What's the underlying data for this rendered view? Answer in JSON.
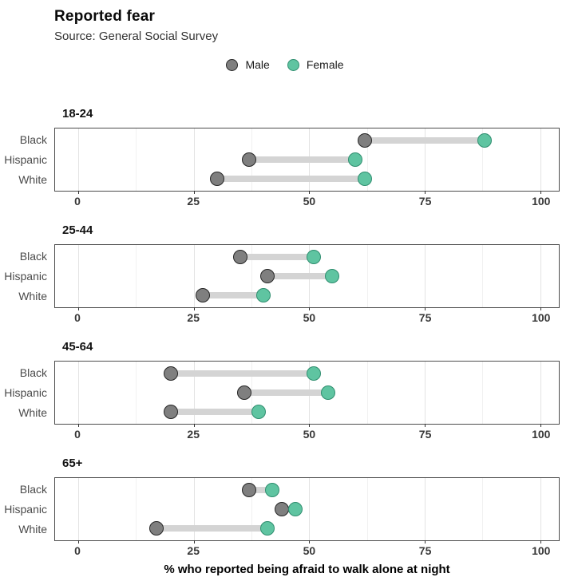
{
  "chart_data": {
    "type": "dumbbell",
    "title": "Reported fear",
    "subtitle": "Source: General Social Survey",
    "xlabel": "% who reported being afraid to walk alone at night",
    "x_axis": {
      "ticks": [
        0,
        25,
        50,
        75,
        100
      ],
      "minor_ticks": [
        12.5,
        37.5,
        62.5,
        87.5
      ],
      "range": [
        -5,
        104
      ]
    },
    "legend_position": "top-center",
    "grid": "vertical-only",
    "series": [
      {
        "name": "Male",
        "fill": "#7f7f7f",
        "stroke": "#262626"
      },
      {
        "name": "Female",
        "fill": "#5fc4a1",
        "stroke": "#2f8e6f"
      }
    ],
    "connector_color": "#d4d4d4",
    "categories": [
      "Black",
      "Hispanic",
      "White"
    ],
    "panels": [
      {
        "label": "18-24",
        "rows": [
          {
            "category": "Black",
            "male": 62,
            "female": 88
          },
          {
            "category": "Hispanic",
            "male": 37,
            "female": 60
          },
          {
            "category": "White",
            "male": 30,
            "female": 62
          }
        ]
      },
      {
        "label": "25-44",
        "rows": [
          {
            "category": "Black",
            "male": 35,
            "female": 51
          },
          {
            "category": "Hispanic",
            "male": 41,
            "female": 55
          },
          {
            "category": "White",
            "male": 27,
            "female": 40
          }
        ]
      },
      {
        "label": "45-64",
        "rows": [
          {
            "category": "Black",
            "male": 20,
            "female": 51
          },
          {
            "category": "Hispanic",
            "male": 36,
            "female": 54
          },
          {
            "category": "White",
            "male": 20,
            "female": 39
          }
        ]
      },
      {
        "label": "65+",
        "rows": [
          {
            "category": "Black",
            "male": 37,
            "female": 42
          },
          {
            "category": "Hispanic",
            "male": 44,
            "female": 47
          },
          {
            "category": "White",
            "male": 17,
            "female": 41
          }
        ]
      }
    ]
  }
}
